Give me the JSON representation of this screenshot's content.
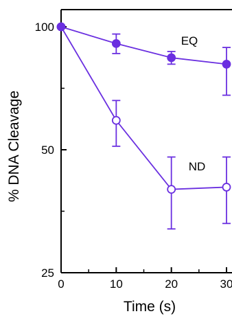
{
  "chart_data": {
    "type": "line",
    "xlabel": "Time (s)",
    "ylabel": "% DNA Cleavage",
    "xlim": [
      0,
      30
    ],
    "ylim": [
      25,
      100
    ],
    "yscale": "log",
    "grid": false,
    "x_ticks": [
      {
        "value": 0,
        "label": "0"
      },
      {
        "value": 10,
        "label": "10"
      },
      {
        "value": 20,
        "label": "20"
      },
      {
        "value": 30,
        "label": "30"
      }
    ],
    "y_ticks": [
      {
        "value": 25,
        "label": "25"
      },
      {
        "value": 50,
        "label": "50"
      },
      {
        "value": 100,
        "label": "100"
      }
    ],
    "series": [
      {
        "name": "EQ",
        "color": "#6a2fe0",
        "marker": "filled-circle",
        "x": [
          0,
          10,
          20,
          30
        ],
        "y": [
          100,
          91,
          84,
          81
        ],
        "err_low": [
          100,
          86,
          81,
          68
        ],
        "err_high": [
          100,
          96,
          87,
          89
        ]
      },
      {
        "name": "ND",
        "color": "#6a2fe0",
        "marker": "open-circle",
        "x": [
          0,
          10,
          20,
          30
        ],
        "y": [
          100,
          59,
          40,
          40.5
        ],
        "err_low": [
          100,
          51,
          32,
          33
        ],
        "err_high": [
          100,
          66,
          48,
          48
        ]
      }
    ]
  }
}
